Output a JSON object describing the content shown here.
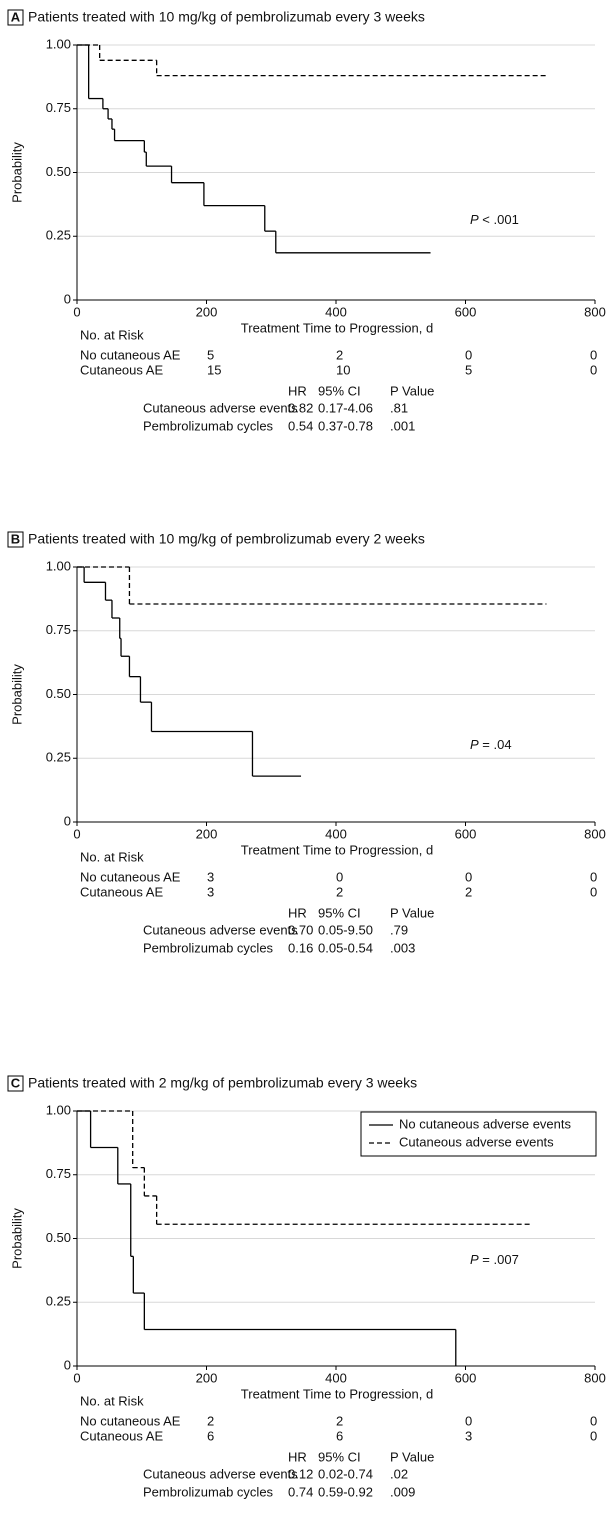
{
  "chart_data": [
    {
      "type": "step",
      "panel_label": "A",
      "title": "Patients treated with 10 mg/kg of pembrolizumab every 3 weeks",
      "x_label": "Treatment Time to Progression, d",
      "y_label": "Probability",
      "xlim": [
        0,
        800
      ],
      "xticks": [
        0,
        200,
        400,
        600,
        800
      ],
      "ylim": [
        0,
        1
      ],
      "yticks": [
        0,
        {
          "value": 0.25,
          "label": "0.25"
        },
        {
          "value": 0.5,
          "label": "0.50"
        },
        {
          "value": 0.75,
          "label": "0.75"
        },
        {
          "value": 1,
          "label": "1.00"
        }
      ],
      "grid": "y",
      "series": [
        {
          "style": "solid",
          "color": "#000000",
          "x": [
            0,
            18,
            40,
            48,
            54,
            58,
            104,
            107,
            146,
            196,
            290,
            307,
            546
          ],
          "values": [
            1,
            0.79,
            0.75,
            0.71,
            0.67,
            0.625,
            0.58,
            0.525,
            0.46,
            0.37,
            0.27,
            0.185,
            0.185
          ]
        },
        {
          "style": "dashed",
          "color": "#000000",
          "x": [
            0,
            35,
            123,
            725
          ],
          "values": [
            1,
            0.94,
            0.88,
            0.88
          ]
        }
      ],
      "p_symbol": "P",
      "p_value": "< .001",
      "risk_table": {
        "title": "No. at Risk",
        "rows": [
          {
            "name": "No cutaneous AE",
            "values": [
              5,
              2,
              0,
              0
            ]
          },
          {
            "name": "Cutaneous AE",
            "values": [
              15,
              10,
              5,
              0
            ]
          }
        ]
      },
      "hr_table": {
        "columns": [
          "HR",
          "95% CI",
          "P Value"
        ],
        "rows": [
          {
            "name": "Cutaneous adverse events",
            "cells": [
              "0.82",
              "0.17-4.06",
              ".81"
            ]
          },
          {
            "name": "Pembrolizumab cycles",
            "cells": [
              "0.54",
              "0.37-0.78",
              ".001"
            ]
          }
        ]
      }
    },
    {
      "type": "step",
      "panel_label": "B",
      "title": "Patients treated with 10 mg/kg of pembrolizumab every 2 weeks",
      "x_label": "Treatment Time to Progression, d",
      "y_label": "Probability",
      "xlim": [
        0,
        800
      ],
      "xticks": [
        0,
        200,
        400,
        600,
        800
      ],
      "ylim": [
        0,
        1
      ],
      "yticks": [
        0,
        {
          "value": 0.25,
          "label": "0.25"
        },
        {
          "value": 0.5,
          "label": "0.50"
        },
        {
          "value": 0.75,
          "label": "0.75"
        },
        {
          "value": 1,
          "label": "1.00"
        }
      ],
      "grid": "y",
      "series": [
        {
          "style": "solid",
          "color": "#000000",
          "x": [
            0,
            11,
            44,
            54,
            66,
            68,
            81,
            98,
            115,
            271,
            346
          ],
          "values": [
            1,
            0.94,
            0.87,
            0.8,
            0.72,
            0.65,
            0.57,
            0.47,
            0.355,
            0.18,
            0.18
          ]
        },
        {
          "style": "dashed",
          "color": "#000000",
          "x": [
            0,
            81,
            725
          ],
          "values": [
            1,
            0.855,
            0.855
          ]
        }
      ],
      "p_symbol": "P",
      "p_value": "= .04",
      "risk_table": {
        "title": "No. at Risk",
        "rows": [
          {
            "name": "No cutaneous AE",
            "values": [
              3,
              0,
              0,
              0
            ]
          },
          {
            "name": "Cutaneous AE",
            "values": [
              3,
              2,
              2,
              0
            ]
          }
        ]
      },
      "hr_table": {
        "columns": [
          "HR",
          "95% CI",
          "P Value"
        ],
        "rows": [
          {
            "name": "Cutaneous adverse events",
            "cells": [
              "0.70",
              "0.05-9.50",
              ".79"
            ]
          },
          {
            "name": "Pembrolizumab cycles",
            "cells": [
              "0.16",
              "0.05-0.54",
              ".003"
            ]
          }
        ]
      }
    },
    {
      "type": "step",
      "panel_label": "C",
      "title": "Patients treated with 2 mg/kg of pembrolizumab every 3 weeks",
      "x_label": "Treatment Time to Progression, d",
      "y_label": "Probability",
      "xlim": [
        0,
        800
      ],
      "xticks": [
        0,
        200,
        400,
        600,
        800
      ],
      "ylim": [
        0,
        1
      ],
      "yticks": [
        0,
        {
          "value": 0.25,
          "label": "0.25"
        },
        {
          "value": 0.5,
          "label": "0.50"
        },
        {
          "value": 0.75,
          "label": "0.75"
        },
        {
          "value": 1,
          "label": "1.00"
        }
      ],
      "grid": "y",
      "legend": "upper right",
      "series": [
        {
          "name": "No cutaneous adverse events",
          "style": "solid",
          "color": "#000000",
          "x": [
            0,
            21,
            63,
            83,
            87,
            104,
            585
          ],
          "values": [
            1,
            0.857,
            0.714,
            0.43,
            0.286,
            0.143,
            0
          ]
        },
        {
          "name": "Cutaneous adverse events",
          "style": "dashed",
          "color": "#000000",
          "x": [
            0,
            86,
            104,
            123,
            699
          ],
          "values": [
            1,
            0.778,
            0.667,
            0.556,
            0.556
          ]
        }
      ],
      "p_symbol": "P",
      "p_value": "= .007",
      "risk_table": {
        "title": "No. at Risk",
        "rows": [
          {
            "name": "No cutaneous AE",
            "values": [
              2,
              2,
              0,
              0
            ]
          },
          {
            "name": "Cutaneous AE",
            "values": [
              6,
              6,
              3,
              0
            ]
          }
        ]
      },
      "hr_table": {
        "columns": [
          "HR",
          "95% CI",
          "P Value"
        ],
        "rows": [
          {
            "name": "Cutaneous adverse events",
            "cells": [
              "0.12",
              "0.02-0.74",
              ".02"
            ]
          },
          {
            "name": "Pembrolizumab cycles",
            "cells": [
              "0.74",
              "0.59-0.92",
              ".009"
            ]
          }
        ]
      }
    }
  ]
}
